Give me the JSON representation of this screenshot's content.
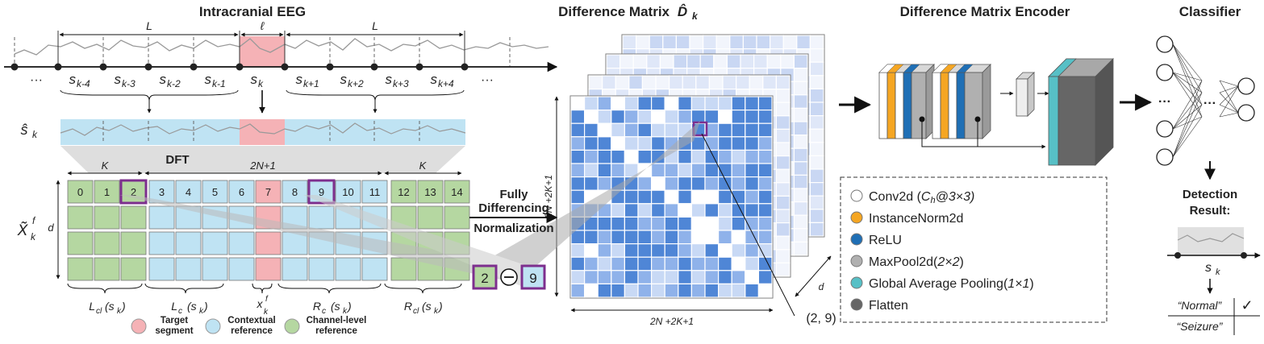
{
  "titles": {
    "eeg": "Intracranial EEG",
    "diff": "Difference Matrix",
    "diff_sym": "D̂",
    "diff_sub": "k",
    "encoder": "Difference Matrix Encoder",
    "classifier": "Classifier"
  },
  "eeg": {
    "len_left": "L",
    "len_mid": "ℓ",
    "len_right": "L",
    "dots_left": "···",
    "dots_right": "···",
    "segments": [
      "k-4",
      "k-3",
      "k-2",
      "k-1",
      "k",
      "k+1",
      "k+2",
      "k+3",
      "k+4"
    ],
    "seg_sym": "s",
    "shat_sym": "ŝ",
    "shat_sub": "k"
  },
  "dft": {
    "label": "DFT",
    "brace_K_left": "K",
    "brace_mid": "2N+1",
    "brace_K_right": "K",
    "columns": [
      "0",
      "1",
      "2",
      "3",
      "4",
      "5",
      "6",
      "7",
      "8",
      "9",
      "10",
      "11",
      "12",
      "13",
      "14"
    ],
    "row_label_sym": "X̃",
    "row_label_sub": "k",
    "row_label_sup": "f",
    "d_label": "d",
    "bottom_labels": {
      "lcl": "L",
      "lcl_sub": "cl",
      "lcl_arg": "(s",
      "lc": "L",
      "lc_sub": "c",
      "xf": "x",
      "xf_sup": "f",
      "xf_sub": "k",
      "rc": "R",
      "rc_sub": "c",
      "rcl": "R",
      "rcl_sub": "cl",
      "arg_k": "k"
    }
  },
  "legend_bottom": {
    "target": [
      "Target",
      "segment"
    ],
    "context": [
      "Contextual",
      "reference"
    ],
    "channel": [
      "Channel-level",
      "reference"
    ]
  },
  "colors": {
    "green": "#b5d7a1",
    "blue": "#bfe3f3",
    "pink": "#f5b2b6",
    "purple": "#7d2f8e",
    "mat_dark": "#4f86d6",
    "mat_mid": "#8fb2ea",
    "mat_light": "#c8d9f5",
    "orange": "#f5a623",
    "relu": "#1f6fb5",
    "gray": "#aaaaaa",
    "teal": "#57c0c6",
    "darkgray": "#666666"
  },
  "fdn": {
    "line1": "Fully",
    "line2": "Differencing",
    "line3": "Normalization",
    "op_left": "2",
    "op_right": "9"
  },
  "matrix": {
    "size_label_left": "2N +2K+1",
    "size_label_bottom": "2N +2K+1",
    "d_label": "d",
    "coord_label": "(2, 9)"
  },
  "encoder_legend": [
    {
      "text": "Conv2d (",
      "sub_a": "C",
      "sub_b": "h",
      "rest": "@3×3)",
      "color": "#ffffff",
      "icon": "white-circle-icon"
    },
    {
      "text": "InstanceNorm2d",
      "color": "#f5a623",
      "icon": "orange-circle-icon"
    },
    {
      "text": "ReLU",
      "color": "#1f6fb5",
      "icon": "blue-circle-icon"
    },
    {
      "text": "MaxPool2d(",
      "rest": "2×2)",
      "color": "#b0b0b0",
      "icon": "gray-circle-icon"
    },
    {
      "text": "Global Average Pooling(",
      "rest": "1×1)",
      "color": "#57c0c6",
      "icon": "teal-circle-icon"
    },
    {
      "text": "Flatten",
      "color": "#666666",
      "icon": "darkgray-circle-icon"
    }
  ],
  "classifier": {
    "dots": "···",
    "result_line1": "Detection",
    "result_line2": "Result:",
    "s_sym": "s",
    "s_sub": "k",
    "normal": "“Normal”",
    "seizure": "“Seizure”",
    "check": "✓"
  }
}
